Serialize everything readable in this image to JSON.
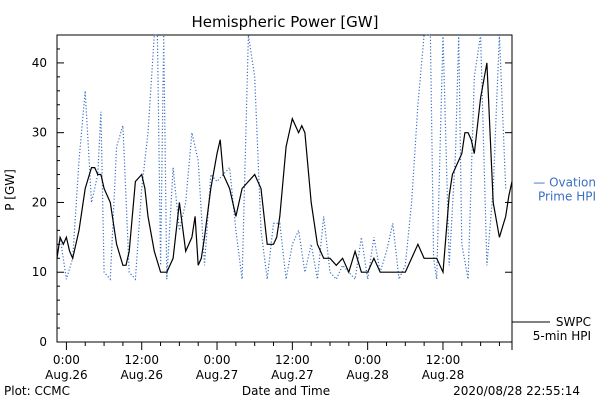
{
  "chart_data": {
    "type": "line",
    "title": "Hemispheric Power [GW]",
    "xlabel": "Date and Time",
    "ylabel": "P [GW]",
    "ylim": [
      0,
      44
    ],
    "yticks": [
      0,
      10,
      20,
      30,
      40
    ],
    "xlim_hours": [
      -1.5,
      71
    ],
    "xticks": [
      {
        "h": 0,
        "time": "0:00",
        "date": "Aug.26"
      },
      {
        "h": 12,
        "time": "12:00",
        "date": "Aug.26"
      },
      {
        "h": 24,
        "time": "0:00",
        "date": "Aug.27"
      },
      {
        "h": 36,
        "time": "12:00",
        "date": "Aug.27"
      },
      {
        "h": 48,
        "time": "0:00",
        "date": "Aug.28"
      },
      {
        "h": 60,
        "time": "12:00",
        "date": "Aug.28"
      }
    ],
    "footer_left": "Plot: CCMC",
    "footer_right": "2020/08/28 22:55:14",
    "series": [
      {
        "name": "Ovation Prime HPI",
        "legend_lines": [
          "— Ovation",
          "Prime HPI"
        ],
        "color": "#3a6fc4",
        "style": "dotted",
        "x": [
          -1.0,
          0.0,
          1.0,
          2.0,
          3.0,
          4.0,
          5.0,
          5.5,
          6.0,
          7.0,
          8.0,
          9.0,
          10.0,
          11.0,
          12.0,
          13.0,
          14.0,
          14.5,
          15.0,
          15.5,
          16.0,
          17.0,
          18.0,
          19.0,
          20.0,
          21.0,
          22.0,
          23.0,
          24.0,
          25.0,
          26.0,
          27.0,
          28.0,
          29.0,
          30.0,
          31.0,
          32.0,
          33.0,
          34.0,
          35.0,
          36.0,
          37.0,
          38.0,
          39.0,
          40.0,
          41.0,
          42.0,
          43.0,
          44.0,
          45.0,
          46.0,
          47.0,
          48.0,
          49.0,
          50.0,
          51.0,
          52.0,
          53.0,
          54.0,
          55.0,
          56.0,
          57.0,
          58.0,
          58.5,
          59.0,
          60.0,
          61.0,
          62.0,
          62.5,
          63.0,
          64.0,
          65.0,
          66.0,
          67.0,
          68.0,
          69.0,
          70.0
        ],
        "values": [
          15,
          9,
          12,
          26,
          36,
          20,
          24,
          33,
          10,
          9,
          28,
          31,
          10,
          9,
          22,
          30,
          44,
          44,
          11,
          44,
          9,
          25,
          16,
          20,
          30,
          26,
          11,
          24,
          23,
          24,
          25,
          16,
          9,
          44,
          38,
          16,
          9,
          17,
          17,
          9,
          14,
          16,
          10,
          14,
          9,
          18,
          10,
          9,
          11,
          10,
          9,
          15,
          9,
          15,
          10,
          13,
          17,
          9,
          11,
          20,
          34,
          44,
          44,
          12,
          9,
          44,
          11,
          27,
          44,
          14,
          9,
          38,
          44,
          11,
          22,
          44,
          22
        ]
      },
      {
        "name": "SWPC 5-min HPI",
        "legend_lines": [
          "SWPC",
          "5-min HPI"
        ],
        "color": "#000000",
        "style": "solid",
        "value": 0
      },
      {
        "name": "HPI",
        "color": "#000000",
        "style": "solid",
        "x": [
          -1.5,
          -1.0,
          -0.5,
          0.0,
          0.5,
          1.0,
          2.0,
          3.0,
          4.0,
          4.5,
          5.0,
          5.5,
          6.0,
          7.0,
          8.0,
          9.0,
          9.5,
          10.0,
          11.0,
          12.0,
          12.5,
          13.0,
          14.0,
          15.0,
          16.0,
          17.0,
          18.0,
          19.0,
          20.0,
          20.5,
          21.0,
          21.5,
          22.0,
          23.0,
          24.0,
          24.5,
          25.0,
          26.0,
          27.0,
          28.0,
          29.0,
          30.0,
          31.0,
          32.0,
          33.0,
          33.5,
          34.0,
          35.0,
          36.0,
          37.0,
          37.5,
          38.0,
          39.0,
          40.0,
          41.0,
          42.0,
          43.0,
          44.0,
          45.0,
          46.0,
          47.0,
          48.0,
          49.0,
          50.0,
          51.0,
          52.0,
          53.0,
          54.0,
          55.0,
          56.0,
          57.0,
          58.0,
          59.0,
          60.0,
          61.0,
          61.5,
          62.0,
          63.0,
          63.5,
          64.0,
          64.5,
          65.0,
          66.0,
          67.0,
          68.0,
          69.0,
          70.0,
          70.5,
          71.0
        ],
        "values": [
          12,
          15,
          14,
          15,
          13,
          12,
          16,
          22,
          25,
          25,
          24,
          24,
          22,
          20,
          14,
          11,
          11,
          13,
          23,
          24,
          22,
          18,
          13,
          10,
          10,
          12,
          20,
          13,
          15,
          18,
          11,
          12,
          15,
          22,
          27,
          29,
          24,
          22,
          18,
          22,
          23,
          24,
          22,
          14,
          14,
          15,
          18,
          28,
          32,
          30,
          31,
          30,
          20,
          14,
          12,
          12,
          11,
          12,
          10,
          13,
          10,
          10,
          12,
          10,
          10,
          10,
          10,
          10,
          12,
          14,
          12,
          12,
          12,
          10,
          21,
          24,
          25,
          27,
          30,
          30,
          29,
          27,
          35,
          40,
          20,
          15,
          18,
          21,
          23
        ]
      }
    ]
  }
}
